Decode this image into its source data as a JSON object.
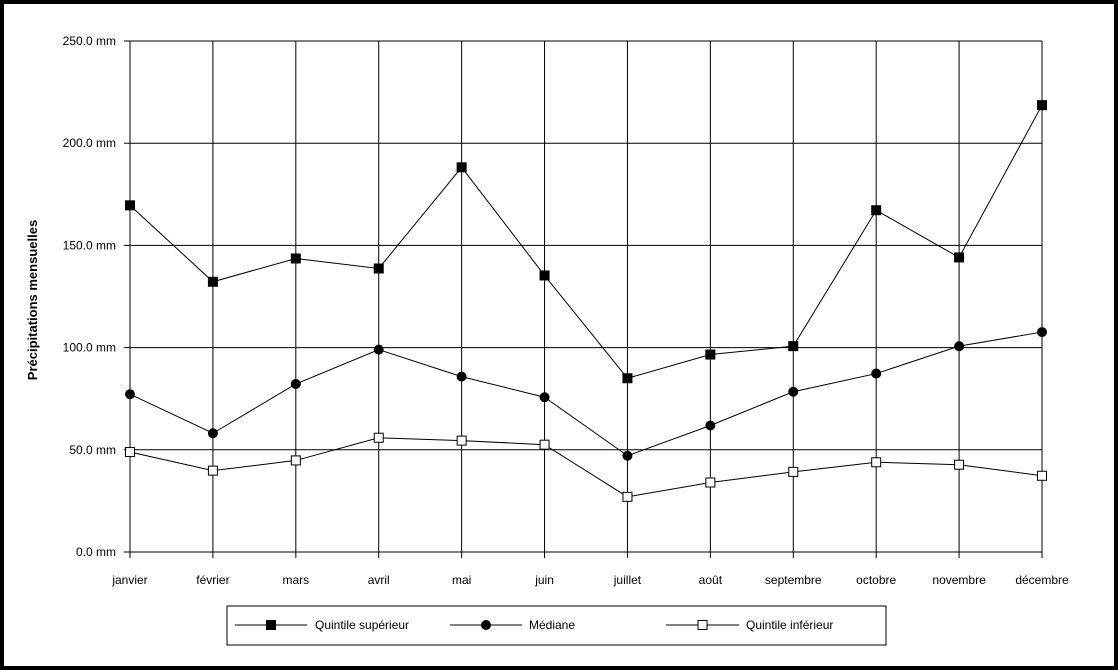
{
  "chart_data": {
    "type": "line",
    "title": "",
    "xlabel": "",
    "ylabel": "Précipitations mensuelles",
    "categories": [
      "janvier",
      "février",
      "mars",
      "avril",
      "mai",
      "juin",
      "juillet",
      "août",
      "septembre",
      "octobre",
      "novembre",
      "décembre"
    ],
    "ylim": [
      0,
      250
    ],
    "y_ticks": [
      "0.0 mm",
      "50.0 mm",
      "100.0 mm",
      "150.0 mm",
      "200.0 mm",
      "250.0 mm"
    ],
    "grid": true,
    "legend_position": "bottom",
    "series": [
      {
        "name": "Quintile supérieur",
        "marker": "filled-square",
        "values": [
          169.6,
          132.2,
          143.6,
          138.7,
          188.2,
          135.3,
          85.0,
          96.6,
          100.7,
          167.2,
          144.1,
          218.6
        ]
      },
      {
        "name": "Médiane",
        "marker": "filled-circle",
        "values": [
          77.2,
          58.1,
          82.2,
          99.0,
          85.8,
          75.7,
          47.1,
          61.9,
          78.4,
          87.3,
          100.7,
          107.6
        ]
      },
      {
        "name": "Quintile inférieur",
        "marker": "open-square",
        "values": [
          48.9,
          39.8,
          44.8,
          55.9,
          54.5,
          52.5,
          27.0,
          34.0,
          39.2,
          43.9,
          42.7,
          37.3
        ]
      }
    ],
    "colors": {
      "line": "#000000",
      "grid": "#000000",
      "background": "#ffffff"
    }
  }
}
